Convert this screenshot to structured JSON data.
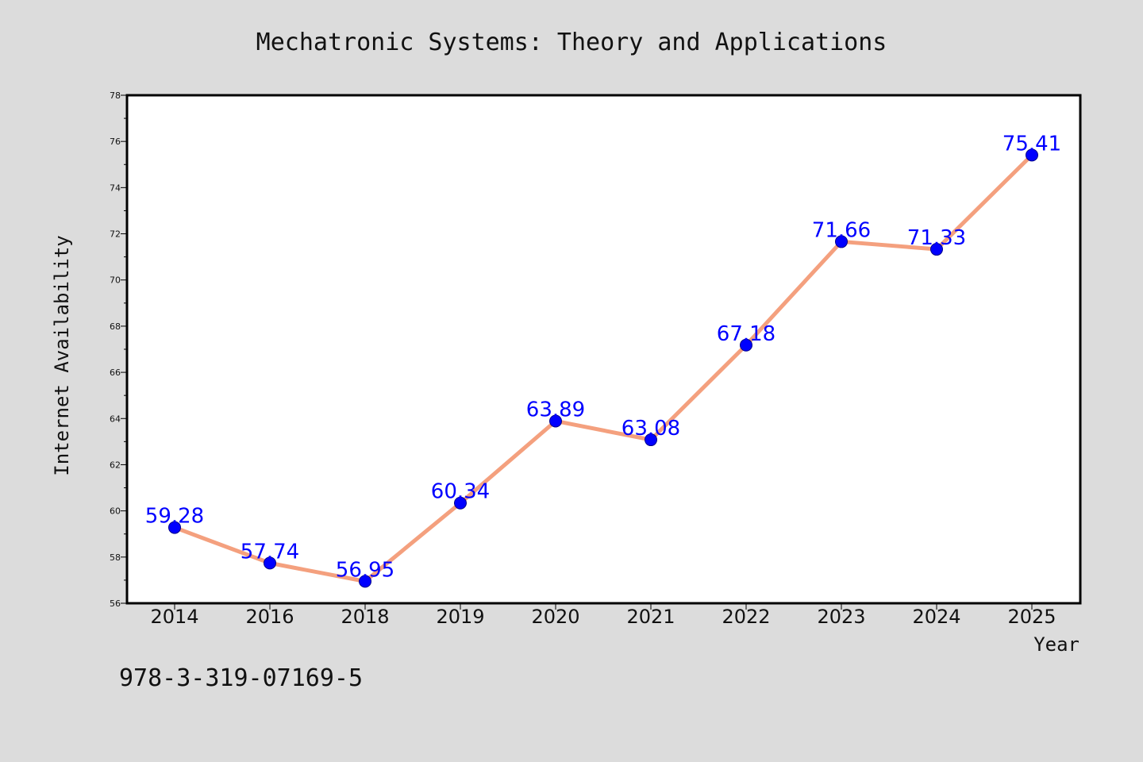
{
  "chart_data": {
    "type": "line",
    "title": "Mechatronic Systems: Theory and Applications",
    "xlabel": "Year",
    "ylabel": "Internet Availability",
    "categories": [
      "2014",
      "2016",
      "2018",
      "2019",
      "2020",
      "2021",
      "2022",
      "2023",
      "2024",
      "2025"
    ],
    "series": [
      {
        "values": [
          59.28,
          57.74,
          56.95,
          60.34,
          63.89,
          63.08,
          67.18,
          71.66,
          71.33,
          75.41
        ],
        "data_labels": [
          "59.28",
          "57.74",
          "56.95",
          "60.34",
          "63.89",
          "63.08",
          "67.18",
          "71.66",
          "71.33",
          "75.41"
        ]
      }
    ],
    "ylim": [
      56,
      78
    ],
    "yticks": [
      56,
      58,
      60,
      62,
      64,
      66,
      68,
      70,
      72,
      74,
      76,
      78
    ],
    "grid": false,
    "legend": "none",
    "colors": {
      "line": "#f4a07e",
      "marker": "#0000ff",
      "data_label": "#0000ff",
      "background": "#dcdcdc",
      "plot_background": "#ffffff"
    }
  },
  "footer": {
    "isbn": "978-3-319-07169-5"
  }
}
